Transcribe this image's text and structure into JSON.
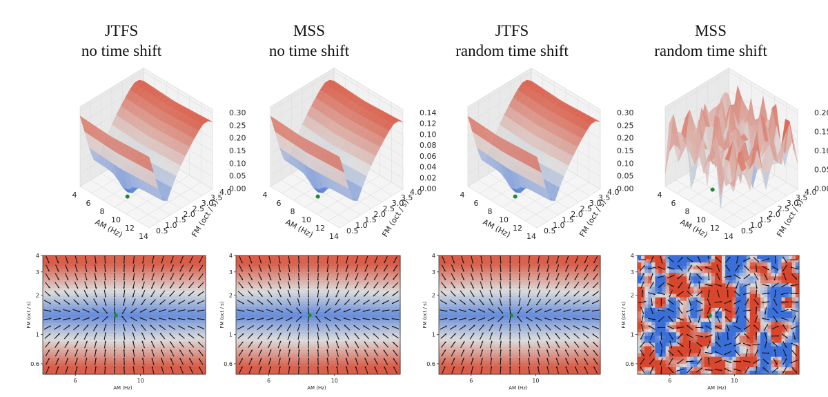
{
  "panels": [
    {
      "method": "JTFS",
      "shift": "no time shift"
    },
    {
      "method": "MSS",
      "shift": "no time shift"
    },
    {
      "method": "JTFS",
      "shift": "random time shift"
    },
    {
      "method": "MSS",
      "shift": "random time shift"
    }
  ],
  "colors": {
    "low": "#3b6fd8",
    "mid": "#dcdcdc",
    "high": "#d8462e",
    "marker": "#1a8c2e",
    "arrow": "#111111"
  },
  "chart_data": [
    {
      "type": "surface",
      "title": "JTFS no time shift",
      "xlabel": "AM (Hz)",
      "ylabel": "FM (oct / s)",
      "x_ticks": [
        4,
        6,
        8,
        10,
        12,
        14
      ],
      "y_ticks": [
        0.5,
        1.0,
        1.5,
        2.0,
        2.5,
        3.0,
        3.5,
        4.0
      ],
      "z_ticks": [
        "0.00",
        "0.05",
        "0.10",
        "0.15",
        "0.20",
        "0.25",
        "0.30"
      ],
      "zlim": [
        0,
        0.3
      ],
      "minimum": {
        "am": 8.5,
        "fm": 1.4
      },
      "noisy": false
    },
    {
      "type": "surface",
      "title": "MSS no time shift",
      "xlabel": "AM (Hz)",
      "ylabel": "FM (oct / s)",
      "x_ticks": [
        4,
        6,
        8,
        10,
        12,
        14
      ],
      "y_ticks": [
        0.5,
        1.0,
        1.5,
        2.0,
        2.5,
        3.0,
        3.5,
        4.0
      ],
      "z_ticks": [
        "0.00",
        "0.02",
        "0.04",
        "0.06",
        "0.08",
        "0.10",
        "0.12",
        "0.14"
      ],
      "zlim": [
        0,
        0.14
      ],
      "minimum": {
        "am": 8.5,
        "fm": 1.4
      },
      "noisy": false
    },
    {
      "type": "surface",
      "title": "JTFS random time shift",
      "xlabel": "AM (Hz)",
      "ylabel": "FM (oct / s)",
      "x_ticks": [
        4,
        6,
        8,
        10,
        12,
        14
      ],
      "y_ticks": [
        0.5,
        1.0,
        1.5,
        2.0,
        2.5,
        3.0,
        3.5,
        4.0
      ],
      "z_ticks": [
        "0.00",
        "0.05",
        "0.10",
        "0.15",
        "0.20",
        "0.25",
        "0.30"
      ],
      "zlim": [
        0,
        0.3
      ],
      "minimum": {
        "am": 8.5,
        "fm": 1.4
      },
      "noisy": false
    },
    {
      "type": "surface",
      "title": "MSS random time shift",
      "xlabel": "AM (Hz)",
      "ylabel": "FM (oct / s)",
      "x_ticks": [
        4,
        6,
        8,
        10,
        12,
        14
      ],
      "y_ticks": [
        0.5,
        1.0,
        1.5,
        2.0,
        2.5,
        3.0,
        3.5,
        4.0
      ],
      "z_ticks": [
        "0.00",
        "0.05",
        "0.10",
        "0.15",
        "0.20"
      ],
      "zlim": [
        0,
        0.2
      ],
      "minimum": {
        "am": 8.5,
        "fm": 1.4
      },
      "noisy": true
    },
    {
      "type": "heatmap",
      "title": "JTFS no time shift",
      "xlabel": "AM (Hz)",
      "ylabel": "FM (oct / s)",
      "x_ticks": [
        6,
        10
      ],
      "y_ticks": [
        0.6,
        1,
        2,
        3,
        4
      ],
      "xlim": [
        4,
        14
      ],
      "ylim": [
        0.5,
        4
      ],
      "yscale": "log",
      "minimum": {
        "am": 8.5,
        "fm": 1.4
      },
      "noisy": false,
      "vector_field": "gradient arrows pointing toward minimum"
    },
    {
      "type": "heatmap",
      "title": "MSS no time shift",
      "xlabel": "AM (Hz)",
      "ylabel": "FM (oct / s)",
      "x_ticks": [
        6,
        10
      ],
      "y_ticks": [
        0.6,
        1,
        2,
        3,
        4
      ],
      "xlim": [
        4,
        14
      ],
      "ylim": [
        0.5,
        4
      ],
      "yscale": "log",
      "minimum": {
        "am": 8.5,
        "fm": 1.4
      },
      "noisy": false,
      "vector_field": "gradient arrows pointing toward minimum"
    },
    {
      "type": "heatmap",
      "title": "JTFS random time shift",
      "xlabel": "AM (Hz)",
      "ylabel": "FM (oct / s)",
      "x_ticks": [
        6,
        10
      ],
      "y_ticks": [
        0.6,
        1,
        2,
        3,
        4
      ],
      "xlim": [
        4,
        14
      ],
      "ylim": [
        0.5,
        4
      ],
      "yscale": "log",
      "minimum": {
        "am": 8.5,
        "fm": 1.4
      },
      "noisy": false,
      "vector_field": "gradient arrows pointing toward minimum"
    },
    {
      "type": "heatmap",
      "title": "MSS random time shift",
      "xlabel": "AM (Hz)",
      "ylabel": "FM (oct / s)",
      "x_ticks": [
        6,
        10
      ],
      "y_ticks": [
        0.6,
        1,
        2,
        3,
        4
      ],
      "xlim": [
        4,
        14
      ],
      "ylim": [
        0.5,
        4
      ],
      "yscale": "log",
      "minimum": {
        "am": 8.5,
        "fm": 1.4
      },
      "noisy": true,
      "vector_field": "random arrows"
    }
  ]
}
